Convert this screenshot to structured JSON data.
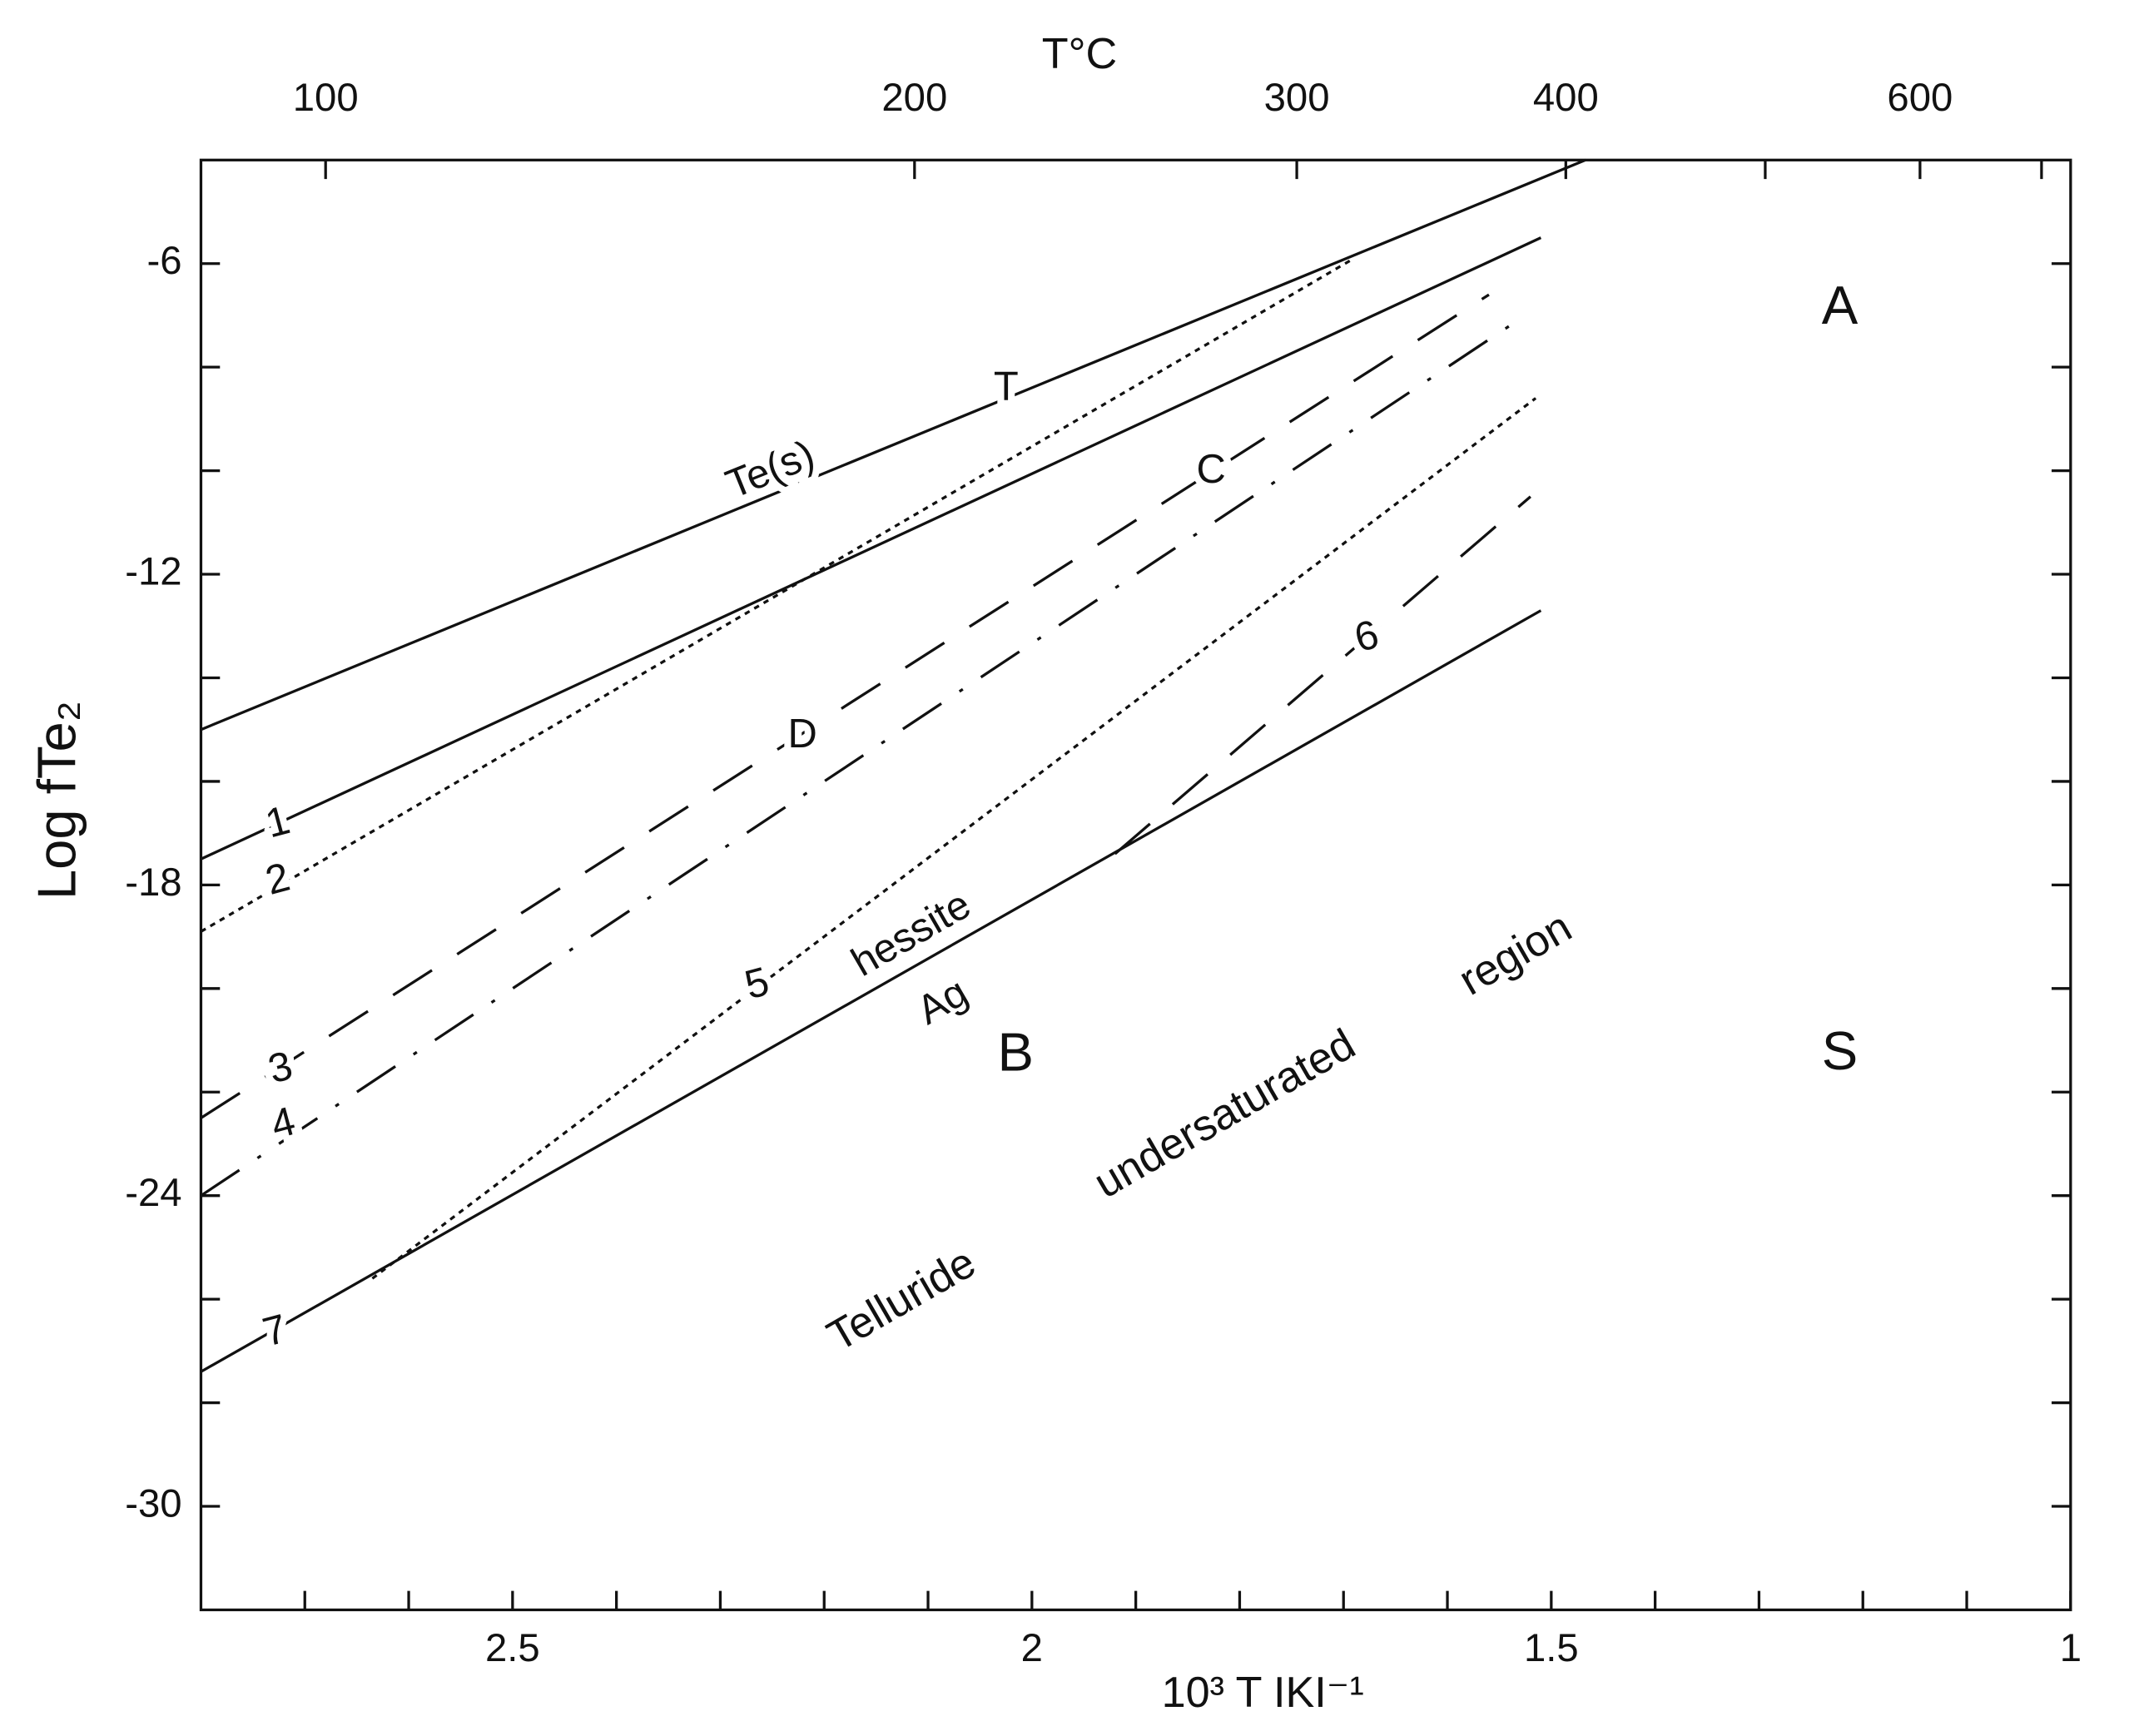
{
  "chart_data": {
    "type": "line",
    "top_label": "T°C",
    "xlabel": "10³ T IKI⁻¹",
    "ylabel": "Log fTe₂",
    "xlim": [
      2.8,
      1.0
    ],
    "ylim": [
      -32,
      -4
    ],
    "xticks": [
      2.5,
      2.0,
      1.5,
      1.0
    ],
    "xticks_minor": [
      2.7,
      2.6,
      2.4,
      2.3,
      2.2,
      2.1,
      1.9,
      1.8,
      1.7,
      1.6,
      1.4,
      1.3,
      1.2,
      1.1
    ],
    "yticks": [
      -6,
      -12,
      -18,
      -24,
      -30
    ],
    "yticks_minor": [
      -8,
      -10,
      -14,
      -16,
      -20,
      -22,
      -26,
      -28
    ],
    "x2ticks": [
      {
        "value": 2.68,
        "label": "100"
      },
      {
        "value": 2.113,
        "label": "200"
      },
      {
        "value": 1.745,
        "label": "300"
      },
      {
        "value": 1.486,
        "label": "400"
      },
      {
        "value": 1.145,
        "label": "600"
      }
    ],
    "x2ticks_minor": [
      1.294,
      1.028
    ],
    "series": [
      {
        "name": "T",
        "color": "#111",
        "dash": "solid",
        "x": [
          2.8,
          1.467
        ],
        "values": [
          -15,
          -4
        ]
      },
      {
        "name": "1",
        "color": "#111",
        "dash": "solid",
        "x": [
          2.8,
          1.51
        ],
        "values": [
          -17.5,
          -5.5
        ]
      },
      {
        "name": "2",
        "color": "#111",
        "dash": "dotted",
        "x": [
          2.8,
          1.69
        ],
        "values": [
          -18.9,
          -5.9
        ]
      },
      {
        "name": "3",
        "color": "#111",
        "dash": "dashed",
        "x": [
          2.8,
          1.56
        ],
        "values": [
          -22.5,
          -6.6
        ]
      },
      {
        "name": "4",
        "color": "#111",
        "dash": "dashdot",
        "x": [
          2.8,
          1.54
        ],
        "values": [
          -24,
          -7.2
        ]
      },
      {
        "name": "5",
        "color": "#111",
        "dash": "dotted",
        "x": [
          2.635,
          1.515
        ],
        "values": [
          -25.6,
          -8.6
        ]
      },
      {
        "name": "6",
        "color": "#111",
        "dash": "dashed",
        "x": [
          1.92,
          1.52
        ],
        "values": [
          -17.4,
          -10.5
        ]
      },
      {
        "name": "7",
        "color": "#111",
        "dash": "solid",
        "x": [
          2.8,
          1.51
        ],
        "values": [
          -27.4,
          -12.7
        ]
      }
    ],
    "annotations": [
      "Te(s)",
      "C",
      "D",
      "hessite",
      "Ag",
      "B",
      "A",
      "S",
      "Telluride",
      "undersaturated",
      "region"
    ]
  }
}
